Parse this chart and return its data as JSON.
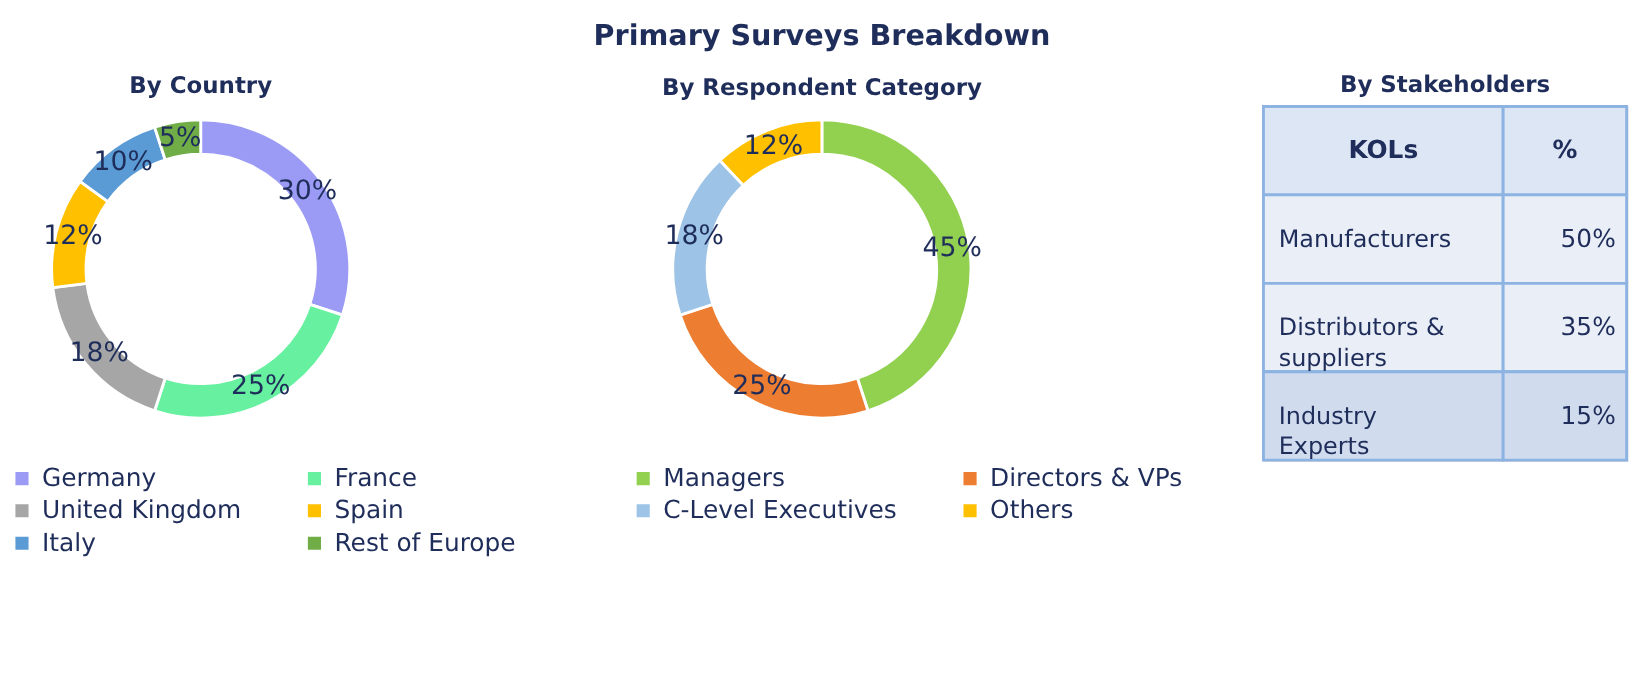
{
  "chart_data": [
    {
      "type": "donut",
      "title": "By Country",
      "categories": [
        "Germany",
        "France",
        "United Kingdom",
        "Spain",
        "Italy",
        "Rest of Europe"
      ],
      "values": [
        30,
        25,
        18,
        12,
        10,
        5
      ],
      "value_labels": [
        "30%",
        "25%",
        "18%",
        "12%",
        "10%",
        "5%"
      ],
      "colors": [
        "#9b9bf5",
        "#66f0a0",
        "#a6a6a6",
        "#ffc000",
        "#5b9bd5",
        "#70ad47"
      ],
      "legend": "bottom"
    },
    {
      "type": "donut",
      "title": "Primary Surveys Breakdown",
      "subtitle": "By Respondent Category",
      "categories": [
        "Managers",
        "Directors & VPs",
        "C-Level Executives",
        "Others"
      ],
      "values": [
        45,
        25,
        18,
        12
      ],
      "value_labels": [
        "45%",
        "25%",
        "18%",
        "12%"
      ],
      "colors": [
        "#92d050",
        "#ed7d31",
        "#9dc3e6",
        "#ffc000"
      ],
      "legend": "bottom"
    },
    {
      "type": "other",
      "title": "By Stakeholders",
      "xlabel": "KOLs",
      "ylabel": "%",
      "categories": [
        "Manufacturers",
        "Distributors & suppliers",
        "Industry Experts"
      ],
      "value_labels": [
        "50%",
        "35%",
        "15%"
      ]
    }
  ]
}
